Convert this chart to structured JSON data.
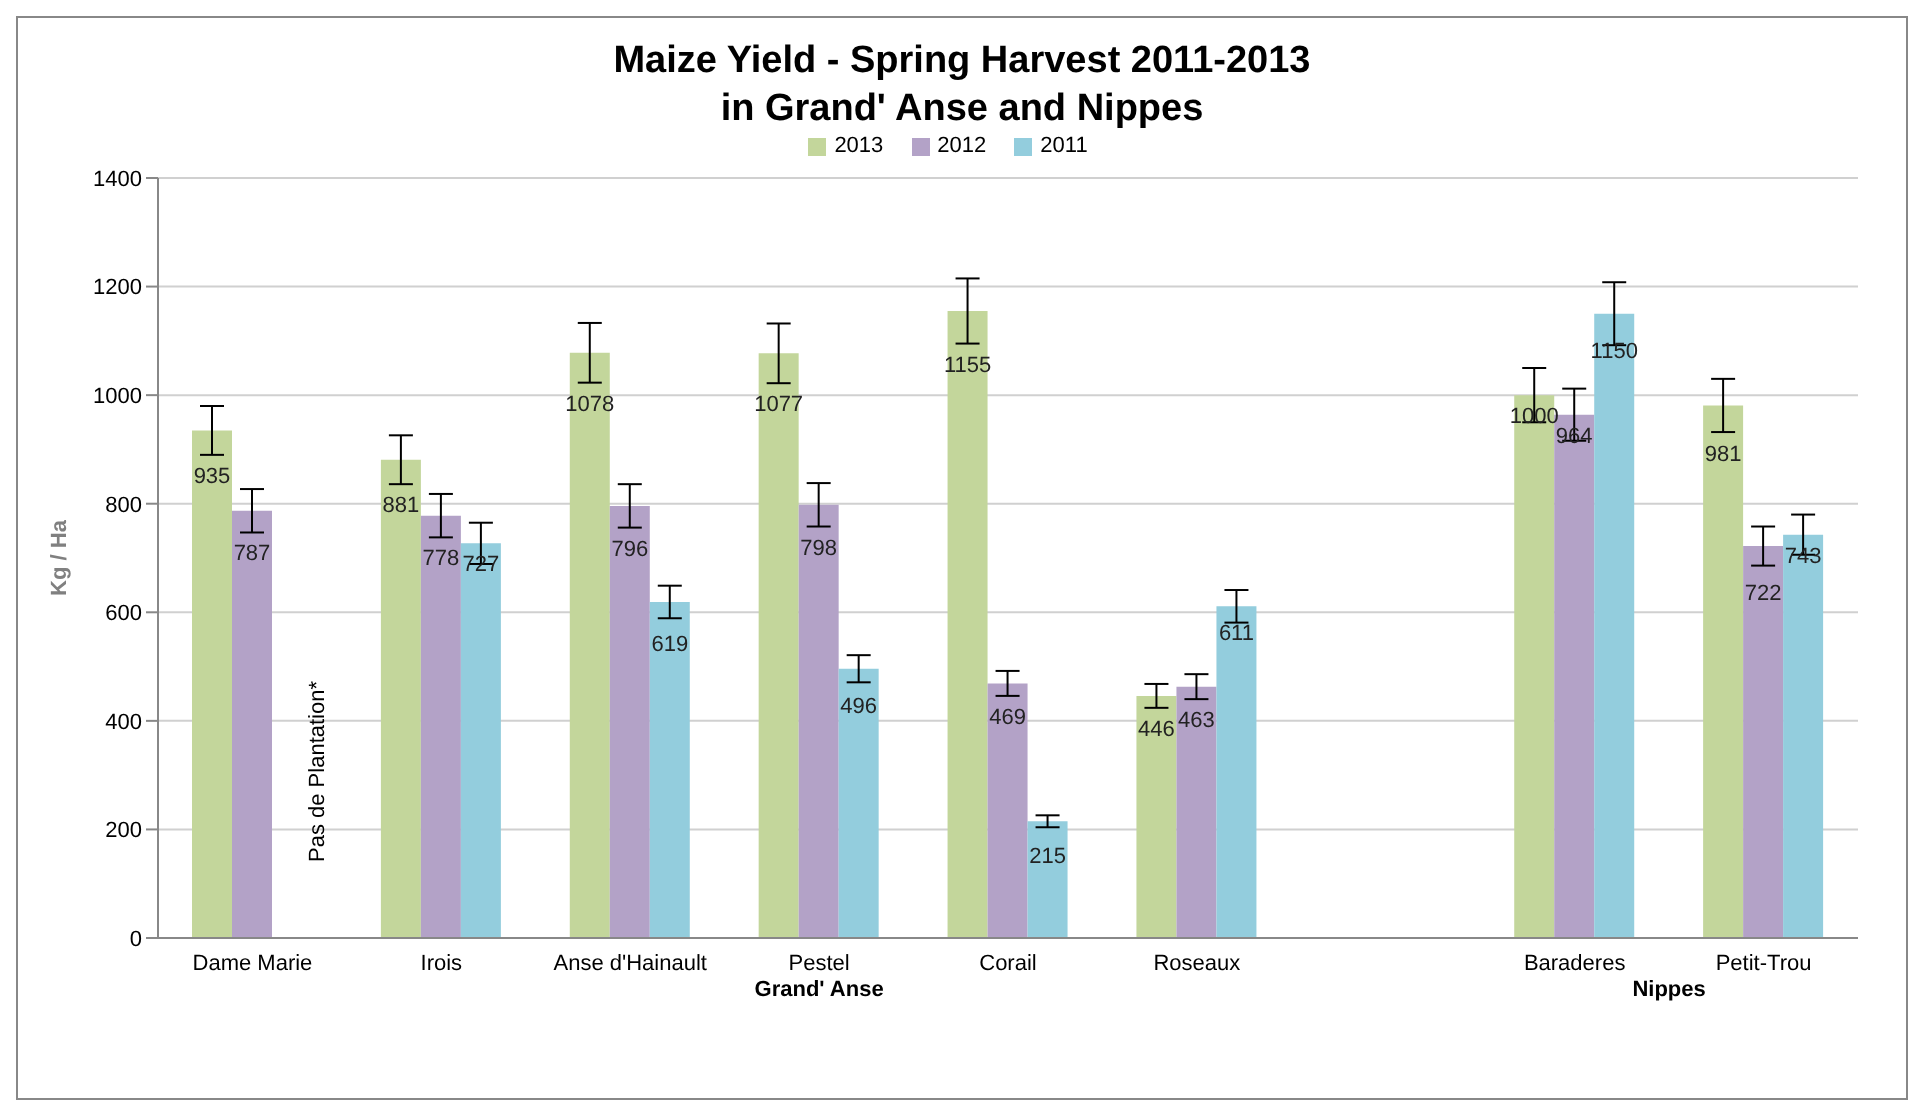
{
  "chart_data": {
    "type": "bar",
    "title": "Maize Yield - Spring Harvest 2011-2013\nin Grand' Anse and Nippes",
    "ylabel": "Kg / Ha",
    "categories": [
      "Dame Marie",
      "Irois",
      "Anse d'Hainault",
      "Pestel",
      "Corail",
      "Roseaux",
      null,
      "Baraderes",
      "Petit-Trou"
    ],
    "series": [
      {
        "name": "2013",
        "color": "#c3d69b",
        "values": [
          935,
          881,
          1078,
          1077,
          1155,
          446,
          null,
          1000,
          981
        ],
        "errors": [
          45,
          45,
          55,
          55,
          60,
          22,
          null,
          50,
          49
        ]
      },
      {
        "name": "2012",
        "color": "#b3a2c7",
        "values": [
          787,
          778,
          796,
          798,
          469,
          463,
          null,
          964,
          722
        ],
        "errors": [
          40,
          40,
          40,
          40,
          23,
          23,
          null,
          48,
          36
        ]
      },
      {
        "name": "2011",
        "color": "#93cddd",
        "values": [
          null,
          727,
          619,
          496,
          215,
          611,
          null,
          1150,
          743
        ],
        "errors": [
          null,
          38,
          30,
          25,
          11,
          30,
          null,
          58,
          37
        ]
      }
    ],
    "ylim": [
      0,
      1400
    ],
    "yticks": [
      0,
      200,
      400,
      600,
      800,
      1000,
      1200,
      1400
    ],
    "grid": "y",
    "legend": "top",
    "data_labels": true,
    "annotations": [
      "Pas de Plantation*",
      "Grand' Anse",
      "Nippes"
    ]
  }
}
